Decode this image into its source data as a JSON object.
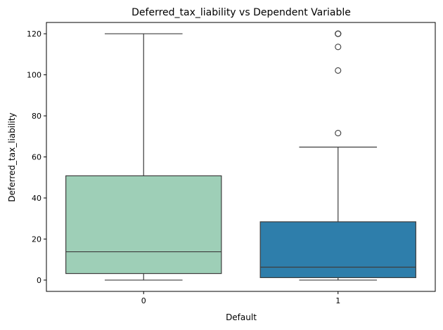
{
  "chart_data": {
    "type": "box",
    "title": "Deferred_tax_liability vs Dependent Variable",
    "xlabel": "Default",
    "ylabel": "Deferred_tax_liability",
    "categories": [
      "0",
      "1"
    ],
    "ylim": [
      -5.5,
      125.5
    ],
    "yticks": [
      0,
      20,
      40,
      60,
      80,
      100,
      120
    ],
    "grid": false,
    "boxes": [
      {
        "category": "0",
        "color": "#9ecfb7",
        "whisker_low": 0,
        "q1": 3.2,
        "median": 13.8,
        "q3": 50.8,
        "whisker_high": 120,
        "outliers": []
      },
      {
        "category": "1",
        "color": "#2e7eab",
        "whisker_low": 0,
        "q1": 1.2,
        "median": 6.3,
        "q3": 28.4,
        "whisker_high": 64.8,
        "outliers": [
          71.6,
          102.1,
          113.6,
          120,
          120,
          120
        ]
      }
    ]
  }
}
